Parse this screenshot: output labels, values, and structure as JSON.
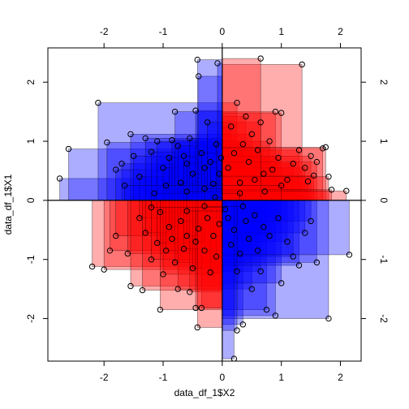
{
  "chart_data": {
    "type": "scatter",
    "title": "",
    "xlabel": "data_df_1$X2",
    "ylabel": "data_df_1$X1",
    "xlim": [
      -2.95,
      2.35
    ],
    "ylim": [
      -2.72,
      2.58
    ],
    "x_ticks": [
      -2,
      -1,
      0,
      1,
      2
    ],
    "y_ticks": [
      -2,
      -1,
      0,
      1,
      2
    ],
    "x_tick_labels": [
      "-2",
      "-1",
      "0",
      "1",
      "2"
    ],
    "y_tick_labels": [
      "-2",
      "-1",
      "0",
      "1",
      "2"
    ],
    "reference_lines": {
      "x": 0,
      "y": 0
    },
    "colors": {
      "positive_product": "#ff0000",
      "negative_product": "#0000ff",
      "point_stroke": "#000000"
    },
    "note_encoding": "each point draws a translucent rectangle to the origin; red when X1*X2>0, blue when X1*X2<0",
    "points": [
      {
        "x": -2.75,
        "y": 0.37
      },
      {
        "x": -2.6,
        "y": 0.87
      },
      {
        "x": -2.1,
        "y": 1.65
      },
      {
        "x": -1.95,
        "y": 0.98
      },
      {
        "x": -1.7,
        "y": 0.62
      },
      {
        "x": -1.8,
        "y": 0.52
      },
      {
        "x": -1.55,
        "y": 1.12
      },
      {
        "x": -1.5,
        "y": 0.75
      },
      {
        "x": -1.4,
        "y": 0.4
      },
      {
        "x": -1.3,
        "y": 1.05
      },
      {
        "x": -1.2,
        "y": 0.82
      },
      {
        "x": -1.1,
        "y": 1.0
      },
      {
        "x": -1.0,
        "y": 0.55
      },
      {
        "x": -0.95,
        "y": 0.25
      },
      {
        "x": -0.9,
        "y": 0.72
      },
      {
        "x": -0.85,
        "y": 1.02
      },
      {
        "x": -0.8,
        "y": 1.5
      },
      {
        "x": -0.75,
        "y": 0.92
      },
      {
        "x": -0.7,
        "y": 0.3
      },
      {
        "x": -0.65,
        "y": 0.75
      },
      {
        "x": -0.6,
        "y": 0.62
      },
      {
        "x": -0.55,
        "y": 1.05
      },
      {
        "x": -0.5,
        "y": 0.45
      },
      {
        "x": -0.45,
        "y": 1.52
      },
      {
        "x": -0.4,
        "y": 2.1
      },
      {
        "x": -0.42,
        "y": 2.38
      },
      {
        "x": -0.35,
        "y": 0.8
      },
      {
        "x": -0.3,
        "y": 0.55
      },
      {
        "x": -0.25,
        "y": 1.32
      },
      {
        "x": -0.2,
        "y": 0.65
      },
      {
        "x": -0.15,
        "y": 0.28
      },
      {
        "x": -0.1,
        "y": 0.95
      },
      {
        "x": -0.08,
        "y": 2.32
      },
      {
        "x": -0.05,
        "y": 0.45
      },
      {
        "x": -0.02,
        "y": 0.72
      },
      {
        "x": -1.15,
        "y": 0.12
      },
      {
        "x": -1.65,
        "y": 0.25
      },
      {
        "x": -0.6,
        "y": 0.15
      },
      {
        "x": -0.3,
        "y": 0.2
      },
      {
        "x": -0.12,
        "y": 0.05
      },
      {
        "x": 0.1,
        "y": 0.55
      },
      {
        "x": 0.15,
        "y": 1.25
      },
      {
        "x": 0.2,
        "y": 0.8
      },
      {
        "x": 0.25,
        "y": 1.65
      },
      {
        "x": 0.3,
        "y": 0.3
      },
      {
        "x": 0.35,
        "y": 0.95
      },
      {
        "x": 0.4,
        "y": 1.42
      },
      {
        "x": 0.45,
        "y": 0.65
      },
      {
        "x": 0.5,
        "y": 1.12
      },
      {
        "x": 0.55,
        "y": 0.35
      },
      {
        "x": 0.6,
        "y": 0.85
      },
      {
        "x": 0.65,
        "y": 1.32
      },
      {
        "x": 0.7,
        "y": 0.45
      },
      {
        "x": 0.72,
        "y": 0.15
      },
      {
        "x": 0.8,
        "y": 1.0
      },
      {
        "x": 0.85,
        "y": 0.52
      },
      {
        "x": 0.9,
        "y": 1.5
      },
      {
        "x": 0.95,
        "y": 0.72
      },
      {
        "x": 1.0,
        "y": 1.48
      },
      {
        "x": 1.1,
        "y": 0.35
      },
      {
        "x": 1.2,
        "y": 0.62
      },
      {
        "x": 1.3,
        "y": 0.85
      },
      {
        "x": 1.35,
        "y": 2.3
      },
      {
        "x": 1.4,
        "y": 0.55
      },
      {
        "x": 1.45,
        "y": 0.32
      },
      {
        "x": 1.5,
        "y": 0.75
      },
      {
        "x": 1.55,
        "y": 0.42
      },
      {
        "x": 1.6,
        "y": 0.65
      },
      {
        "x": 1.7,
        "y": 0.88
      },
      {
        "x": 1.75,
        "y": 0.9
      },
      {
        "x": 1.8,
        "y": 0.4
      },
      {
        "x": 1.85,
        "y": 0.18
      },
      {
        "x": 2.1,
        "y": 0.16
      },
      {
        "x": 0.65,
        "y": 2.4
      },
      {
        "x": 1.0,
        "y": 0.25
      },
      {
        "x": 0.3,
        "y": 0.12
      },
      {
        "x": -2.2,
        "y": -1.12
      },
      {
        "x": -2.0,
        "y": -1.17
      },
      {
        "x": -1.9,
        "y": -0.85
      },
      {
        "x": -1.8,
        "y": -0.6
      },
      {
        "x": -1.6,
        "y": -0.9
      },
      {
        "x": -1.55,
        "y": -1.45
      },
      {
        "x": -1.4,
        "y": -0.3
      },
      {
        "x": -1.35,
        "y": -1.52
      },
      {
        "x": -1.3,
        "y": -0.55
      },
      {
        "x": -1.2,
        "y": -1.0
      },
      {
        "x": -1.1,
        "y": -0.72
      },
      {
        "x": -1.05,
        "y": -0.2
      },
      {
        "x": -1.0,
        "y": -1.25
      },
      {
        "x": -0.95,
        "y": -0.85
      },
      {
        "x": -0.9,
        "y": -0.45
      },
      {
        "x": -0.85,
        "y": -0.65
      },
      {
        "x": -0.8,
        "y": -1.05
      },
      {
        "x": -0.75,
        "y": -1.5
      },
      {
        "x": -0.7,
        "y": -0.35
      },
      {
        "x": -0.65,
        "y": -0.82
      },
      {
        "x": -0.6,
        "y": -0.6
      },
      {
        "x": -0.55,
        "y": -1.55
      },
      {
        "x": -0.5,
        "y": -1.15
      },
      {
        "x": -0.45,
        "y": -0.7
      },
      {
        "x": -0.4,
        "y": -0.48
      },
      {
        "x": -0.35,
        "y": -1.82
      },
      {
        "x": -0.3,
        "y": -0.85
      },
      {
        "x": -0.25,
        "y": -0.3
      },
      {
        "x": -0.2,
        "y": -1.22
      },
      {
        "x": -0.15,
        "y": -0.6
      },
      {
        "x": -0.1,
        "y": -0.95
      },
      {
        "x": -0.05,
        "y": -0.4
      },
      {
        "x": -1.05,
        "y": -1.85
      },
      {
        "x": -0.45,
        "y": -1.82
      },
      {
        "x": -0.42,
        "y": -2.15
      },
      {
        "x": -0.6,
        "y": -0.18
      },
      {
        "x": -1.2,
        "y": -0.12
      },
      {
        "x": -0.3,
        "y": -0.1
      },
      {
        "x": 0.1,
        "y": -0.3
      },
      {
        "x": 0.15,
        "y": -0.75
      },
      {
        "x": 0.2,
        "y": -0.5
      },
      {
        "x": 0.25,
        "y": -1.2
      },
      {
        "x": 0.3,
        "y": -0.9
      },
      {
        "x": 0.35,
        "y": -2.1
      },
      {
        "x": 0.4,
        "y": -0.35
      },
      {
        "x": 0.45,
        "y": -0.65
      },
      {
        "x": 0.5,
        "y": -1.5
      },
      {
        "x": 0.55,
        "y": -0.25
      },
      {
        "x": 0.6,
        "y": -0.85
      },
      {
        "x": 0.65,
        "y": -1.2
      },
      {
        "x": 0.7,
        "y": -0.45
      },
      {
        "x": 0.75,
        "y": -1.85
      },
      {
        "x": 0.8,
        "y": -0.6
      },
      {
        "x": 0.9,
        "y": -1.95
      },
      {
        "x": 0.95,
        "y": -0.3
      },
      {
        "x": 1.0,
        "y": -1.4
      },
      {
        "x": 1.1,
        "y": -0.7
      },
      {
        "x": 1.2,
        "y": -0.95
      },
      {
        "x": 1.3,
        "y": -1.1
      },
      {
        "x": 1.4,
        "y": -0.55
      },
      {
        "x": 1.5,
        "y": -0.35
      },
      {
        "x": 1.6,
        "y": -1.05
      },
      {
        "x": 1.8,
        "y": -2.0
      },
      {
        "x": 2.15,
        "y": -0.92
      },
      {
        "x": 0.2,
        "y": -2.68
      },
      {
        "x": 0.25,
        "y": -2.2
      },
      {
        "x": 0.05,
        "y": -0.15
      },
      {
        "x": 0.35,
        "y": -0.1
      }
    ]
  }
}
